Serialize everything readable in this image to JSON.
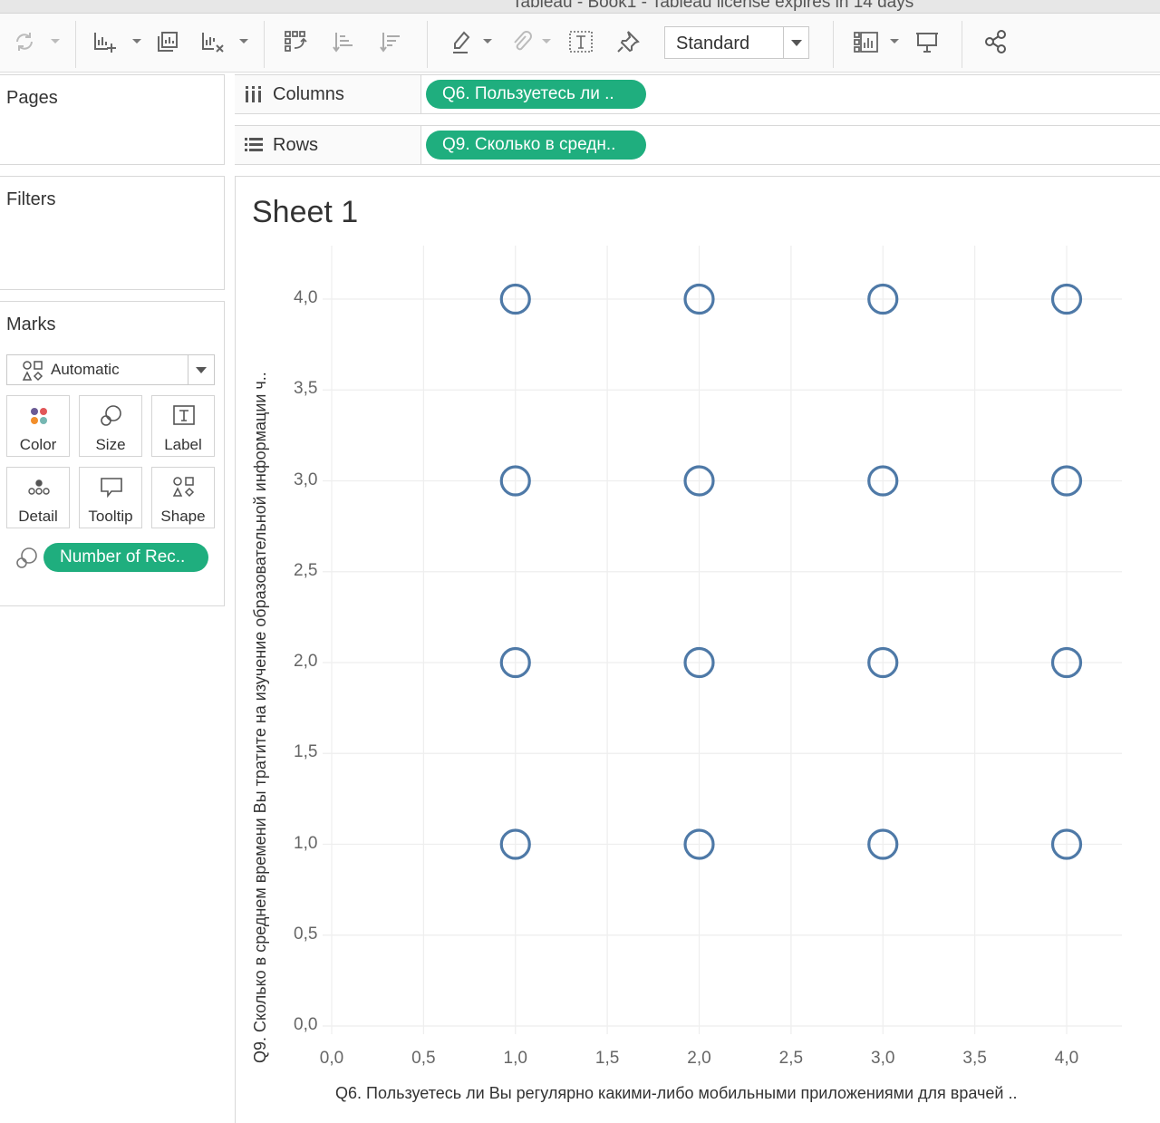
{
  "window": {
    "title": "Tableau - Book1 - Tableau license expires in 14 days"
  },
  "toolbar": {
    "icons": [
      "refresh-icon",
      "new-worksheet-icon",
      "duplicate-sheet-icon",
      "clear-sheet-icon",
      "swap-rows-columns-icon",
      "sort-ascending-icon",
      "sort-descending-icon",
      "highlight-icon",
      "annotate-icon",
      "show-mark-labels-icon",
      "pin-icon",
      "show-me-icon",
      "presentation-mode-icon",
      "share-icon"
    ],
    "fit_select": "Standard"
  },
  "panels": {
    "pages": "Pages",
    "filters": "Filters",
    "marks": {
      "title": "Marks",
      "mark_type": "Automatic",
      "buttons": {
        "color": "Color",
        "size": "Size",
        "label": "Label",
        "detail": "Detail",
        "tooltip": "Tooltip",
        "shape": "Shape"
      },
      "size_pill": "Number of Rec.."
    }
  },
  "shelves": {
    "columns": {
      "label": "Columns",
      "pill": "Q6. Пользуетесь ли .."
    },
    "rows": {
      "label": "Rows",
      "pill": "Q9. Сколько в средн.."
    }
  },
  "sheet": {
    "title": "Sheet 1"
  },
  "chart_data": {
    "type": "scatter",
    "title": "Sheet 1",
    "xlabel": "Q6. Пользуетесь ли Вы регулярно какими-либо мобильными приложениями для врачей ..",
    "ylabel": "Q9. Сколько в среднем времени Вы тратите на изучение образовательной информации ч..",
    "xlim": [
      0,
      4.0
    ],
    "ylim": [
      0,
      4.0
    ],
    "x_ticks": [
      "0,0",
      "0,5",
      "1,0",
      "1,5",
      "2,0",
      "2,5",
      "3,0",
      "3,5",
      "4,0"
    ],
    "y_ticks": [
      "0,0",
      "0,5",
      "1,0",
      "1,5",
      "2,0",
      "2,5",
      "3,0",
      "3,5",
      "4,0"
    ],
    "grid": true,
    "marker": "open-circle",
    "color": "#4e79a7",
    "points": [
      {
        "x": 1,
        "y": 4
      },
      {
        "x": 2,
        "y": 4
      },
      {
        "x": 3,
        "y": 4
      },
      {
        "x": 4,
        "y": 4
      },
      {
        "x": 1,
        "y": 3
      },
      {
        "x": 2,
        "y": 3
      },
      {
        "x": 3,
        "y": 3
      },
      {
        "x": 4,
        "y": 3
      },
      {
        "x": 1,
        "y": 2
      },
      {
        "x": 2,
        "y": 2
      },
      {
        "x": 3,
        "y": 2
      },
      {
        "x": 4,
        "y": 2
      },
      {
        "x": 1,
        "y": 1
      },
      {
        "x": 2,
        "y": 1
      },
      {
        "x": 3,
        "y": 1
      },
      {
        "x": 4,
        "y": 1
      }
    ]
  }
}
